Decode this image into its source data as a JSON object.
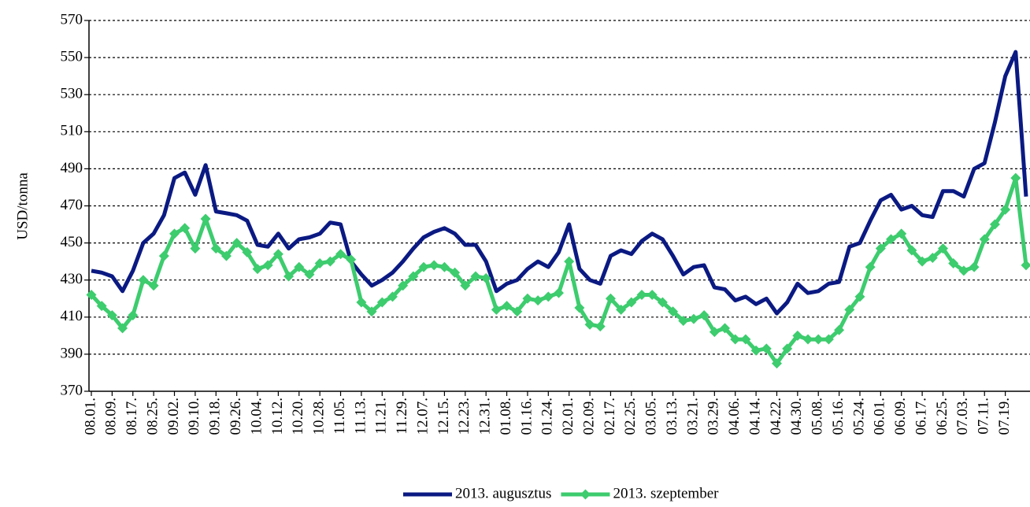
{
  "chart_data": {
    "type": "line",
    "y_label": "USD/tonna",
    "categories": [
      "08.01.",
      null,
      "08.09.",
      null,
      "08.17.",
      null,
      "08.25.",
      null,
      "09.02.",
      null,
      "09.10.",
      null,
      "09.18.",
      null,
      "09.26.",
      null,
      "10.04.",
      null,
      "10.12.",
      null,
      "10.20.",
      null,
      "10.28.",
      null,
      "11.05.",
      null,
      "11.13.",
      null,
      "11.21.",
      null,
      "11.29.",
      null,
      "12.07.",
      null,
      "12.15.",
      null,
      "12.23.",
      null,
      "12.31.",
      null,
      "01.08.",
      null,
      "01.16.",
      null,
      "01.24.",
      null,
      "02.01.",
      null,
      "02.09.",
      null,
      "02.17.",
      null,
      "02.25.",
      null,
      "03.05.",
      null,
      "03.13.",
      null,
      "03.21.",
      null,
      "03.29.",
      null,
      "04.06.",
      null,
      "04.14.",
      null,
      "04.22.",
      null,
      "04.30.",
      null,
      "05.08.",
      null,
      "05.16.",
      null,
      "05.24.",
      null,
      "06.01.",
      null,
      "06.09.",
      null,
      "06.17.",
      null,
      "06.25.",
      null,
      "07.03.",
      null,
      "07.11.",
      null,
      "07.19.",
      null,
      null
    ],
    "series": [
      {
        "name": "2013. augusztus",
        "color": "#0b1a82",
        "marker": "none",
        "values": [
          435,
          434,
          432,
          424,
          435,
          450,
          455,
          465,
          485,
          488,
          476,
          492,
          467,
          466,
          465,
          462,
          449,
          448,
          455,
          447,
          452,
          453,
          455,
          461,
          460,
          440,
          433,
          427,
          430,
          434,
          440,
          447,
          453,
          456,
          458,
          455,
          449,
          449,
          440,
          424,
          428,
          430,
          436,
          440,
          437,
          445,
          460,
          436,
          430,
          428,
          443,
          446,
          444,
          451,
          455,
          452,
          443,
          433,
          437,
          438,
          426,
          425,
          419,
          421,
          417,
          420,
          412,
          418,
          428,
          423,
          424,
          428,
          429,
          448,
          450,
          462,
          473,
          476,
          468,
          470,
          465,
          464,
          478,
          478,
          475,
          490,
          493,
          515,
          540,
          553,
          475
        ]
      },
      {
        "name": "2013. szeptember",
        "color": "#3dcc6e",
        "marker": "diamond",
        "values": [
          422,
          416,
          411,
          404,
          411,
          430,
          427,
          443,
          455,
          458,
          447,
          463,
          447,
          443,
          450,
          445,
          436,
          438,
          444,
          432,
          437,
          433,
          439,
          440,
          444,
          441,
          418,
          413,
          418,
          421,
          427,
          432,
          437,
          438,
          437,
          434,
          427,
          432,
          431,
          414,
          416,
          413,
          420,
          419,
          421,
          423,
          440,
          415,
          406,
          405,
          420,
          414,
          418,
          422,
          422,
          418,
          413,
          408,
          409,
          411,
          402,
          404,
          398,
          398,
          392,
          393,
          385,
          393,
          400,
          398,
          398,
          398,
          403,
          414,
          421,
          437,
          447,
          452,
          455,
          446,
          440,
          442,
          447,
          439,
          435,
          437,
          452,
          460,
          468,
          485,
          438
        ]
      }
    ],
    "ylim": [
      370,
      570
    ],
    "yticks": [
      370,
      390,
      410,
      430,
      450,
      470,
      490,
      510,
      530,
      550,
      570
    ],
    "grid": true,
    "legend": "bottom"
  }
}
